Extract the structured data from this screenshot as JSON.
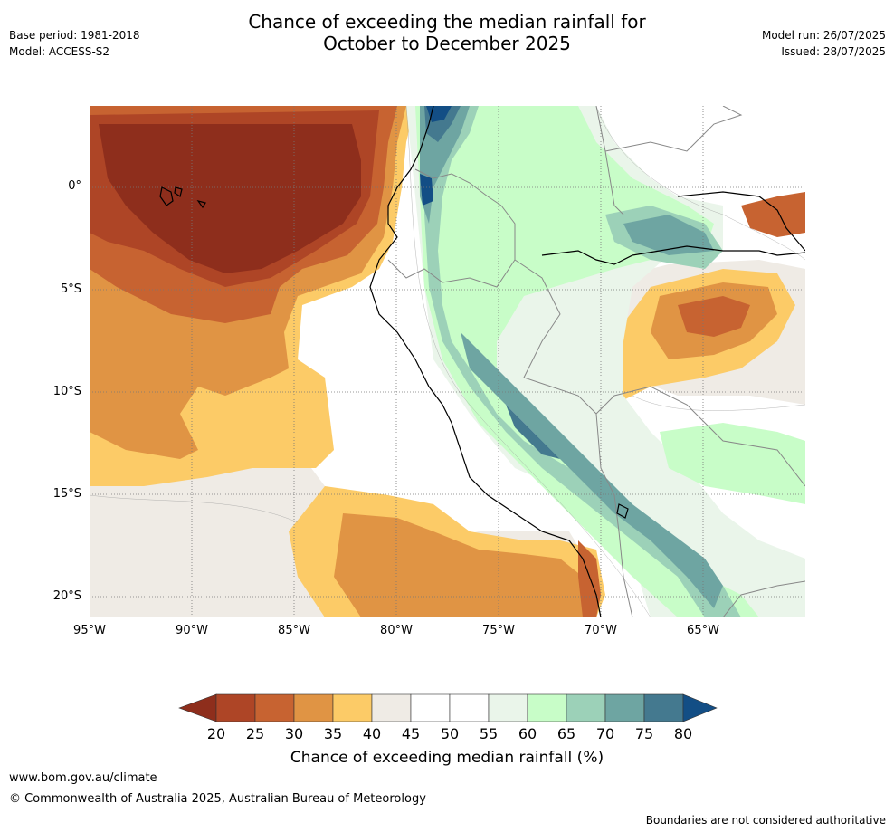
{
  "title": {
    "line1": "Chance of exceeding the median rainfall for",
    "line2": "October to December 2025"
  },
  "meta_left": {
    "base_period": "Base period: 1981-2018",
    "model": "Model: ACCESS-S2"
  },
  "meta_right": {
    "model_run": "Model run: 26/07/2025",
    "issued": "Issued: 28/07/2025"
  },
  "map": {
    "lat_labels": [
      "0°",
      "5°S",
      "10°S",
      "15°S",
      "20°S"
    ],
    "lon_labels": [
      "95°W",
      "90°W",
      "85°W",
      "80°W",
      "75°W",
      "70°W",
      "65°W"
    ],
    "colors": {
      "c20": "#8e2e1c",
      "c25": "#ae4526",
      "c30": "#c76331",
      "c35": "#e09444",
      "c40": "#fccb67",
      "c45": "#efebe5",
      "c50": "#ffffff",
      "c55": "#ffffff",
      "c60": "#eaf5ea",
      "c65": "#c8fdc8",
      "c70": "#9cd1b8",
      "c75": "#6ea5a2",
      "c80": "#44798f",
      "c85": "#134e85",
      "coast": "#000000",
      "border": "#888888",
      "grid": "#777777"
    }
  },
  "colorbar": {
    "ticks": [
      "20",
      "25",
      "30",
      "35",
      "40",
      "45",
      "50",
      "55",
      "60",
      "65",
      "70",
      "75",
      "80"
    ],
    "label": "Chance of exceeding median rainfall (%)"
  },
  "footer": {
    "url": "www.bom.gov.au/climate",
    "copyright": "© Commonwealth of Australia 2025, Australian Bureau of Meteorology",
    "note": "Boundaries are not considered authoritative"
  }
}
